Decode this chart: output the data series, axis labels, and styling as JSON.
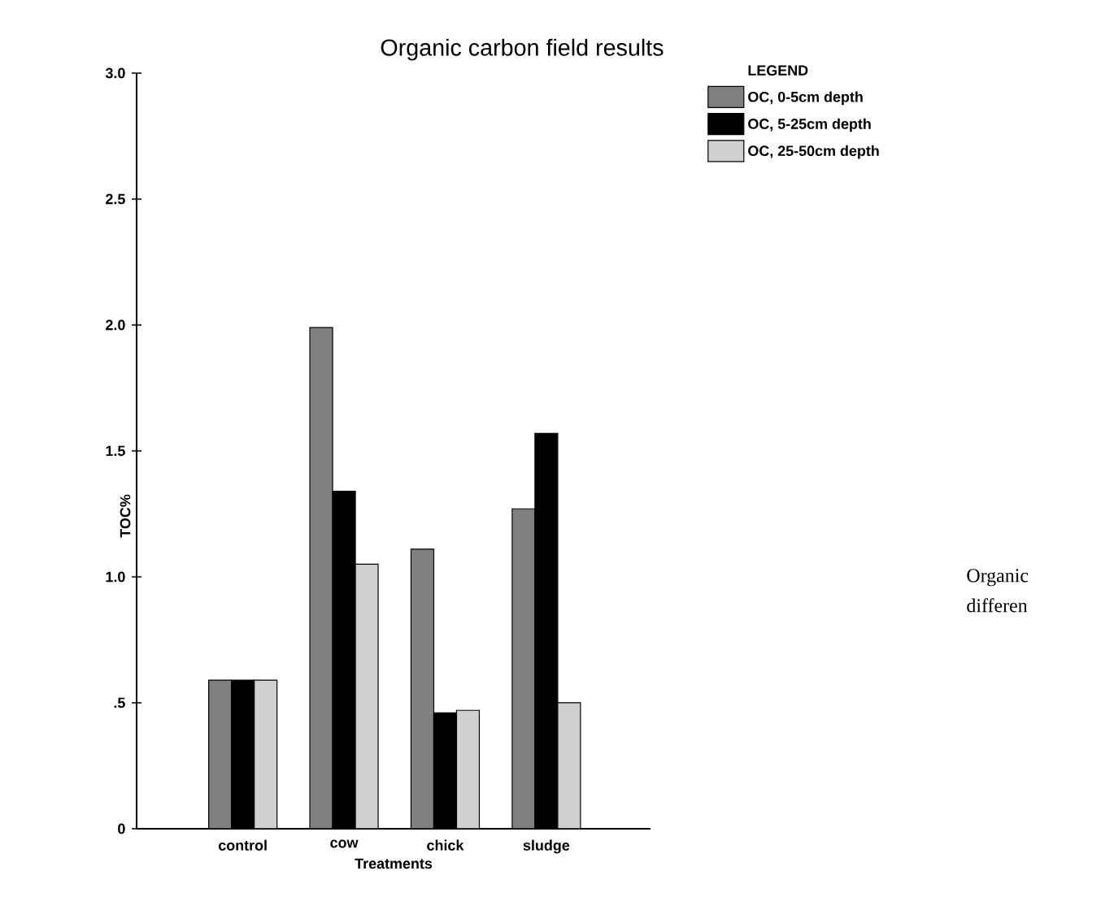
{
  "chart_data": {
    "type": "bar",
    "title": "Organic carbon field results",
    "xlabel": "Treatments",
    "ylabel": "TOC%",
    "legend_title": "LEGEND",
    "categories": [
      "control",
      "cow",
      "chick",
      "sludge"
    ],
    "series": [
      {
        "name": "OC,  0-5cm depth",
        "color": "#808080",
        "values": [
          0.59,
          1.99,
          1.11,
          1.27
        ]
      },
      {
        "name": "OC, 5-25cm depth",
        "color": "#000000",
        "values": [
          0.59,
          1.34,
          0.46,
          1.57
        ]
      },
      {
        "name": "OC, 25-50cm depth",
        "color": "#d0d0d0",
        "values": [
          0.59,
          1.05,
          0.47,
          0.5
        ]
      }
    ],
    "ylim": [
      0,
      3
    ],
    "yticks": [
      0,
      {
        "value": 0.5,
        "label": ".5"
      },
      {
        "value": 1,
        "label": "1.0"
      },
      {
        "value": 1.5,
        "label": "1.5"
      },
      {
        "value": 2,
        "label": "2.0"
      },
      {
        "value": 2.5,
        "label": "2.5"
      },
      {
        "value": 3,
        "label": "3.0"
      }
    ],
    "grid": false,
    "legend": "top right",
    "annotations": [
      "Organic",
      "differen"
    ]
  }
}
